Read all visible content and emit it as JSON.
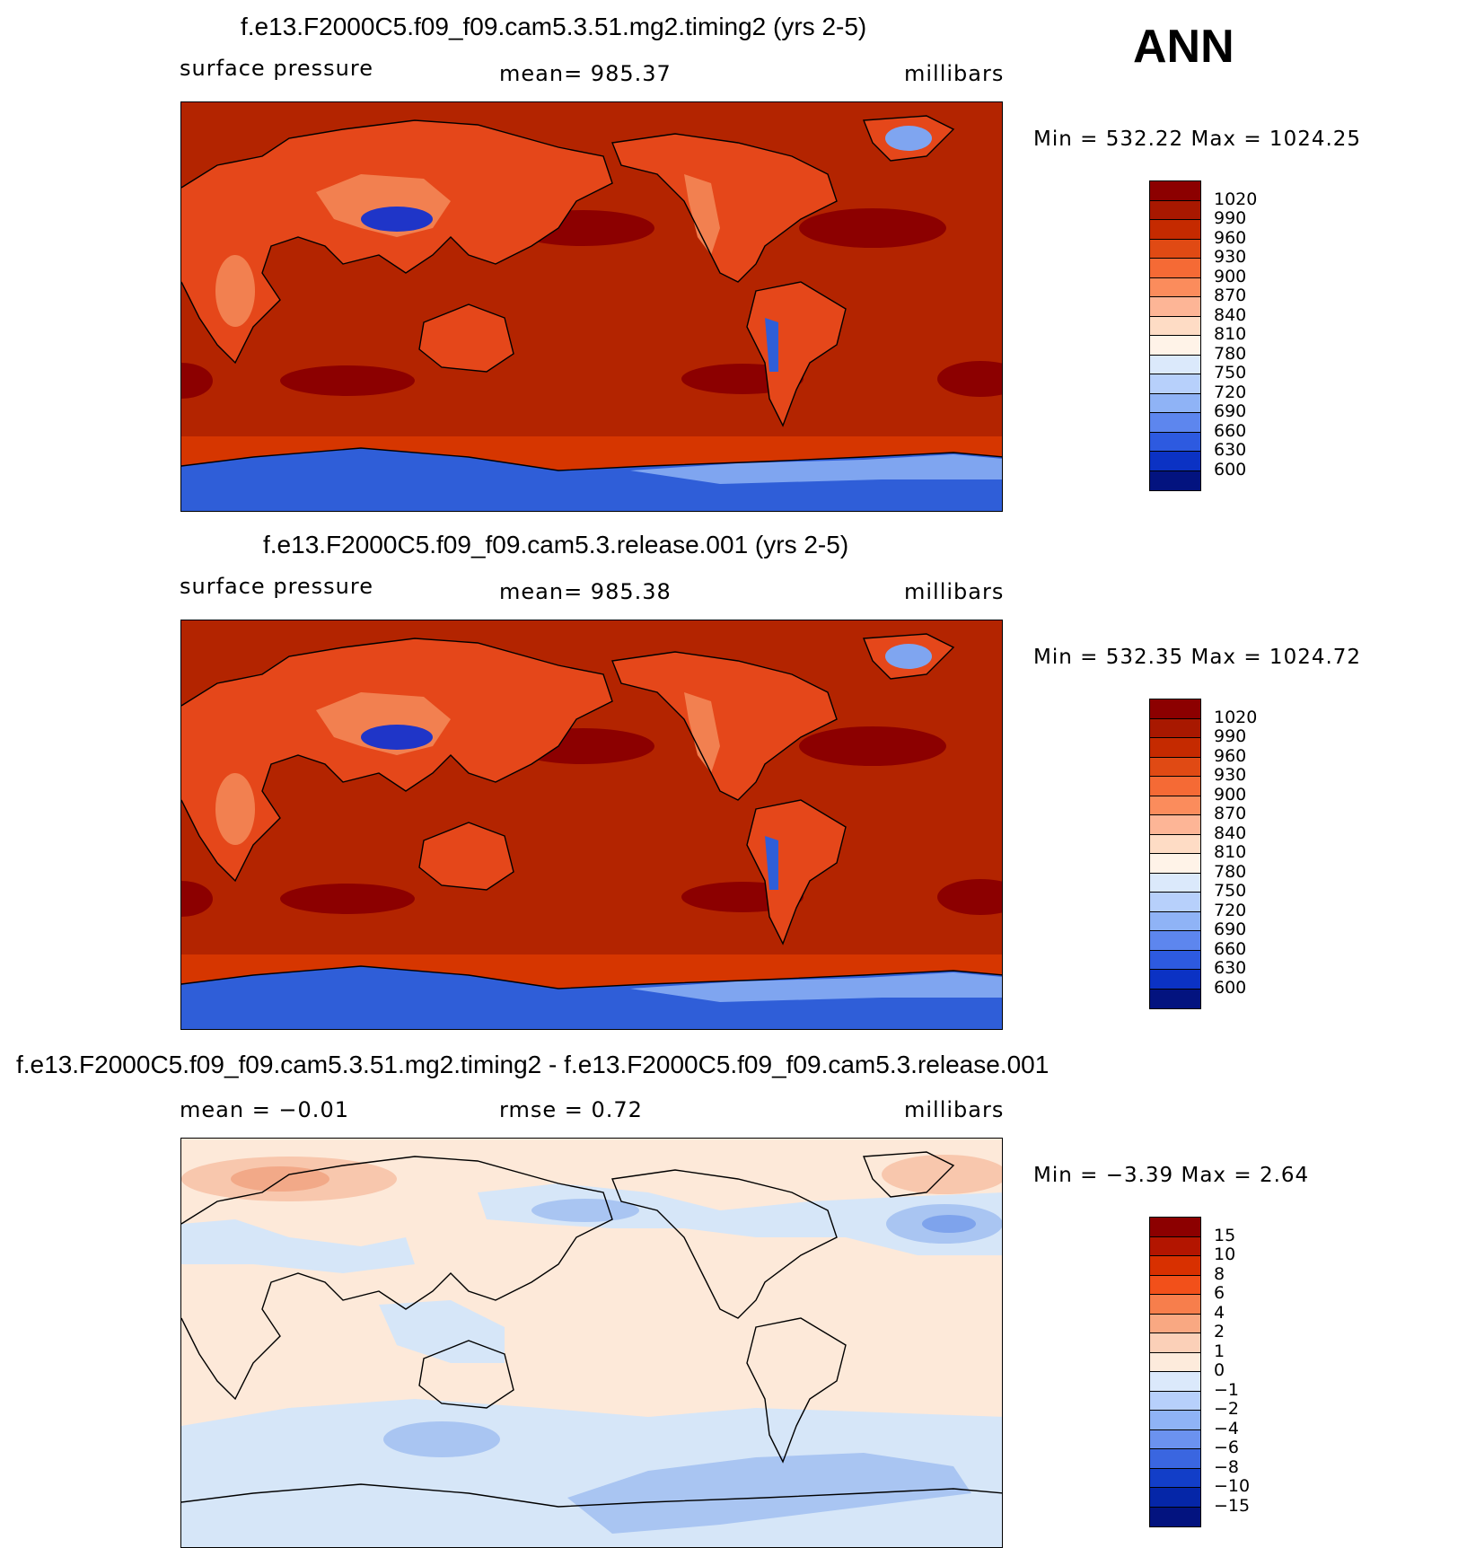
{
  "season": "ANN",
  "panels": [
    {
      "title": "f.e13.F2000C5.f09_f09.cam5.3.51.mg2.timing2 (yrs 2-5)",
      "left_label": "surface pressure",
      "center_label": "mean=  985.37",
      "right_label": "millibars",
      "minmax": "Min  =  532.22  Max  =  1024.25",
      "colorbar_labels": [
        "1020",
        "990",
        "960",
        "930",
        "900",
        "870",
        "840",
        "810",
        "780",
        "750",
        "720",
        "690",
        "660",
        "630",
        "600"
      ],
      "colors": {
        "bg": "#b32400",
        "ocean_high": "#8c0000",
        "southern": "#d63600",
        "land": "#e5471a",
        "land_light": "#f28050",
        "plateau": "#1f35c8",
        "antarctica": "#2f5ed8",
        "antarctica_light": "#7fa5f0"
      }
    },
    {
      "title": "f.e13.F2000C5.f09_f09.cam5.3.release.001 (yrs 2-5)",
      "left_label": "surface pressure",
      "center_label": "mean=  985.38",
      "right_label": "millibars",
      "minmax": "Min  =  532.35  Max  =  1024.72",
      "colorbar_labels": [
        "1020",
        "990",
        "960",
        "930",
        "900",
        "870",
        "840",
        "810",
        "780",
        "750",
        "720",
        "690",
        "660",
        "630",
        "600"
      ],
      "colors": {
        "bg": "#b32400",
        "ocean_high": "#8c0000",
        "southern": "#d63600",
        "land": "#e5471a",
        "land_light": "#f28050",
        "plateau": "#1f35c8",
        "antarctica": "#2f5ed8",
        "antarctica_light": "#7fa5f0"
      }
    },
    {
      "title": "f.e13.F2000C5.f09_f09.cam5.3.51.mg2.timing2 - f.e13.F2000C5.f09_f09.cam5.3.release.001",
      "left_label": "mean  =    −0.01",
      "center_label": "rmse  =      0.72",
      "right_label": "millibars",
      "minmax": "Min  =    −3.39  Max  =      2.64",
      "colorbar_labels": [
        "15",
        "10",
        "8",
        "6",
        "4",
        "2",
        "1",
        "0",
        "−1",
        "−2",
        "−4",
        "−6",
        "−8",
        "−10",
        "−15"
      ],
      "colors": {
        "bg": "#fde9d9",
        "neg": "#d6e6f8",
        "neg2": "#a9c5f2",
        "neg3": "#7ea3ec",
        "pos": "#f8c7ad",
        "pos2": "#f2a988"
      }
    }
  ],
  "colorbar_colors": {
    "abs": [
      "#8c0000",
      "#a81800",
      "#c52a00",
      "#e04a14",
      "#f56a35",
      "#fb8c5c",
      "#fdb596",
      "#fedcc5",
      "#fff3e8",
      "#dbe9fb",
      "#b7d0fb",
      "#8fb3f6",
      "#5d86ee",
      "#2d5ae0",
      "#0b32c4",
      "#03137f"
    ],
    "diff": [
      "#8c0000",
      "#b31500",
      "#d83000",
      "#f2501a",
      "#f77e4c",
      "#f9a882",
      "#fbd0b8",
      "#fdebdc",
      "#dbe9fb",
      "#b7d0fb",
      "#8fb3f6",
      "#6b92ef",
      "#3a66e0",
      "#123ec8",
      "#0526a8",
      "#03137f"
    ]
  }
}
